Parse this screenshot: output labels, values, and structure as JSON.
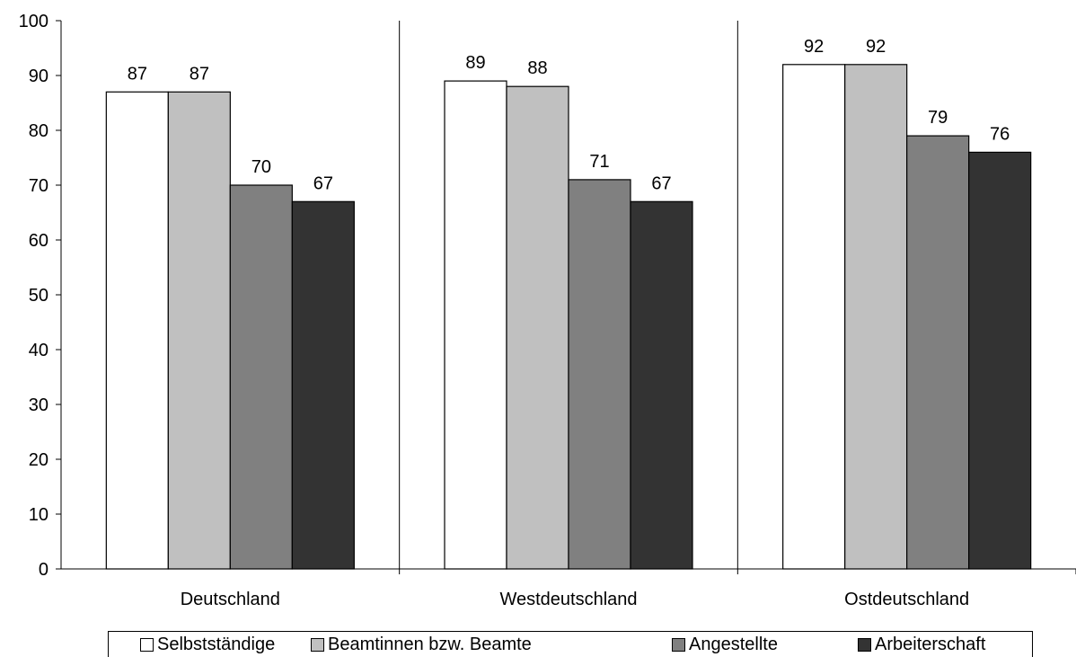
{
  "chart_data": {
    "type": "bar",
    "categories": [
      "Deutschland",
      "Westdeutschland",
      "Ostdeutschland"
    ],
    "series": [
      {
        "name": "Selbstständige",
        "color": "#ffffff",
        "values": [
          87,
          89,
          92
        ]
      },
      {
        "name": "Beamtinnen bzw. Beamte",
        "color": "#c0c0c0",
        "values": [
          87,
          88,
          92
        ]
      },
      {
        "name": "Angestellte",
        "color": "#808080",
        "values": [
          70,
          71,
          79
        ]
      },
      {
        "name": "Arbeiterschaft",
        "color": "#333333",
        "values": [
          67,
          67,
          76
        ]
      }
    ],
    "ylim": [
      0,
      100
    ],
    "yticks": [
      "0",
      "10",
      "20",
      "30",
      "40",
      "50",
      "60",
      "70",
      "80",
      "90",
      "100"
    ],
    "data_labels": true,
    "legend_position": "bottom",
    "grid": false
  }
}
